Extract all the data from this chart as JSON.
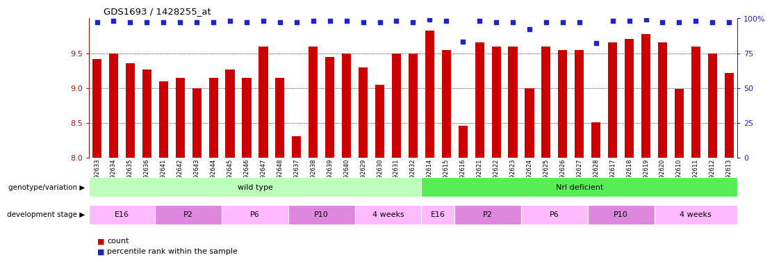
{
  "title": "GDS1693 / 1428255_at",
  "samples": [
    "GSM92633",
    "GSM92634",
    "GSM92635",
    "GSM92636",
    "GSM92641",
    "GSM92642",
    "GSM92643",
    "GSM92644",
    "GSM92645",
    "GSM92646",
    "GSM92647",
    "GSM92648",
    "GSM92637",
    "GSM92638",
    "GSM92639",
    "GSM92640",
    "GSM92629",
    "GSM92630",
    "GSM92631",
    "GSM92632",
    "GSM92614",
    "GSM92615",
    "GSM92616",
    "GSM92621",
    "GSM92622",
    "GSM92623",
    "GSM92624",
    "GSM92625",
    "GSM92626",
    "GSM92627",
    "GSM92628",
    "GSM92617",
    "GSM92618",
    "GSM92619",
    "GSM92620",
    "GSM92610",
    "GSM92611",
    "GSM92612",
    "GSM92613"
  ],
  "bar_values": [
    9.42,
    9.5,
    9.36,
    9.27,
    9.1,
    9.15,
    9.0,
    9.15,
    9.27,
    9.15,
    9.6,
    9.15,
    8.31,
    9.6,
    9.45,
    9.5,
    9.3,
    9.05,
    9.5,
    9.5,
    9.82,
    9.55,
    8.46,
    9.65,
    9.6,
    9.6,
    9.0,
    9.6,
    9.55,
    9.55,
    8.51,
    9.65,
    9.7,
    9.77,
    9.65,
    8.99,
    9.6,
    9.5,
    9.22
  ],
  "percentile_values": [
    97,
    98,
    97,
    97,
    97,
    97,
    97,
    97,
    98,
    97,
    98,
    97,
    97,
    98,
    98,
    98,
    97,
    97,
    98,
    97,
    99,
    98,
    83,
    98,
    97,
    97,
    92,
    97,
    97,
    97,
    82,
    98,
    98,
    99,
    97,
    97,
    98,
    97,
    97
  ],
  "ylim_left": [
    8.0,
    10.0
  ],
  "ylim_right": [
    0,
    100
  ],
  "yticks_left": [
    8.0,
    8.5,
    9.0,
    9.5
  ],
  "yticks_right": [
    0,
    25,
    50,
    75,
    100
  ],
  "bar_color": "#cc0000",
  "dot_color": "#2222cc",
  "bg_color": "#ffffff",
  "axis_color": "#cc0000",
  "right_axis_color": "#2222cc",
  "groups": {
    "wild_type": {
      "label": "wild type",
      "start": 0,
      "end": 20,
      "color": "#bbffbb"
    },
    "nrl_deficient": {
      "label": "Nrl deficient",
      "start": 20,
      "end": 39,
      "color": "#55ee55"
    }
  },
  "wt_stages": [
    {
      "label": "E16",
      "start": 0,
      "end": 4,
      "color": "#ffbbff"
    },
    {
      "label": "P2",
      "start": 4,
      "end": 8,
      "color": "#dd88dd"
    },
    {
      "label": "P6",
      "start": 8,
      "end": 12,
      "color": "#ffbbff"
    },
    {
      "label": "P10",
      "start": 12,
      "end": 16,
      "color": "#dd88dd"
    },
    {
      "label": "4 weeks",
      "start": 16,
      "end": 20,
      "color": "#ffbbff"
    }
  ],
  "nrl_stages": [
    {
      "label": "E16",
      "start": 20,
      "end": 22,
      "color": "#ffbbff"
    },
    {
      "label": "P2",
      "start": 22,
      "end": 26,
      "color": "#dd88dd"
    },
    {
      "label": "P6",
      "start": 26,
      "end": 30,
      "color": "#ffbbff"
    },
    {
      "label": "P10",
      "start": 30,
      "end": 34,
      "color": "#dd88dd"
    },
    {
      "label": "4 weeks",
      "start": 34,
      "end": 39,
      "color": "#ffbbff"
    }
  ]
}
